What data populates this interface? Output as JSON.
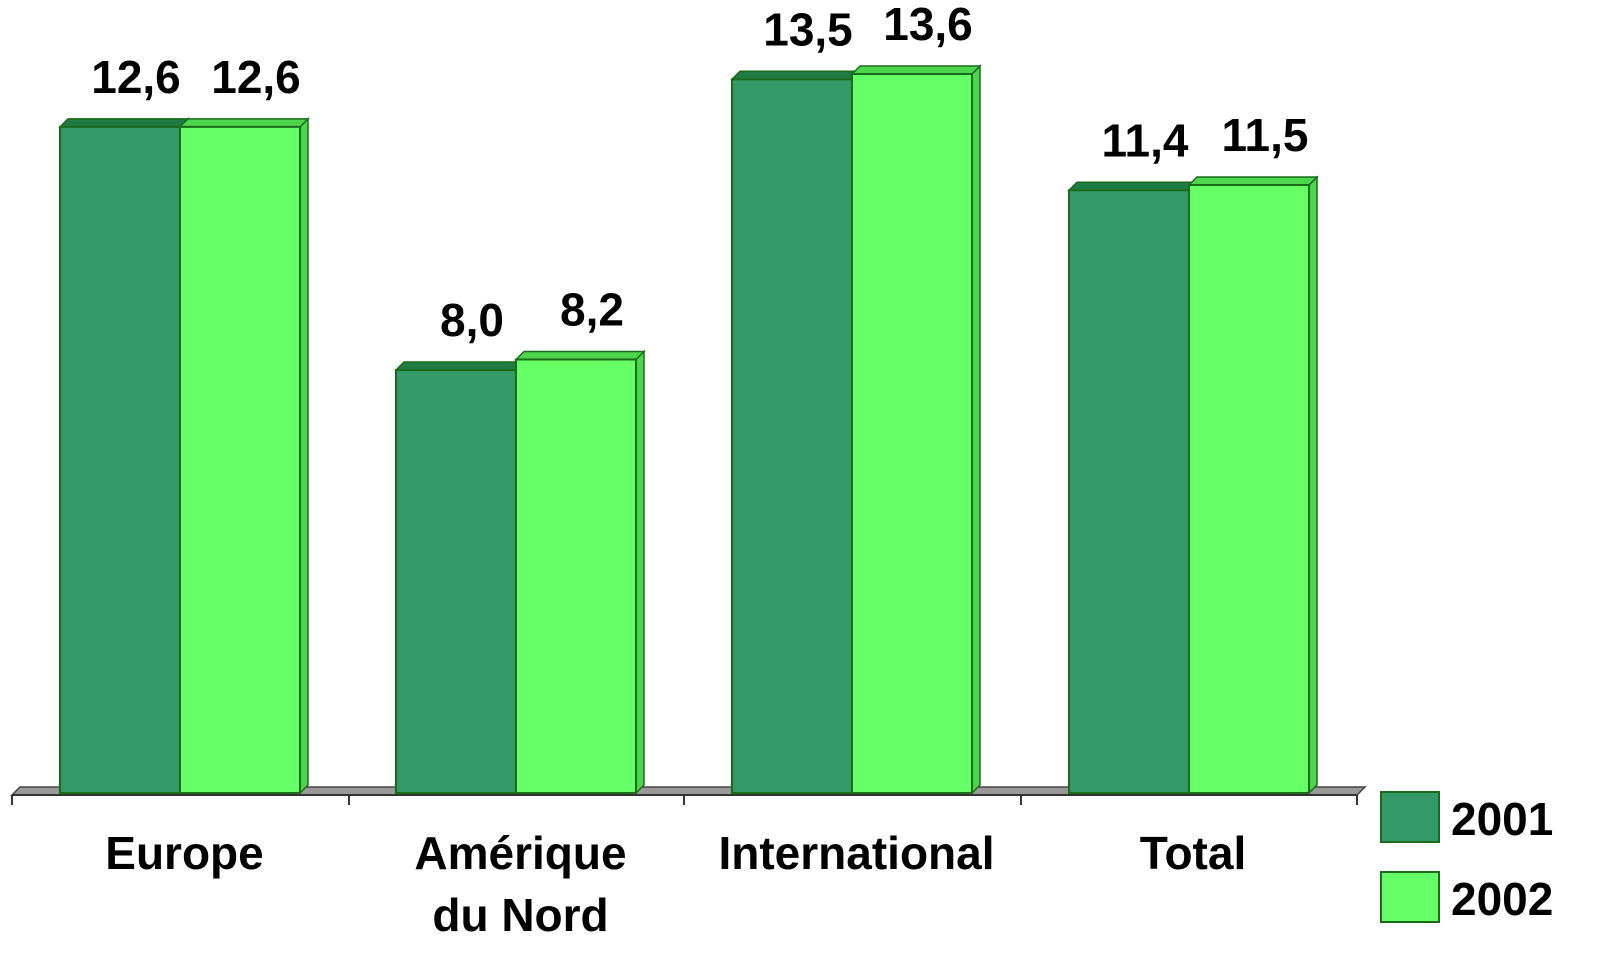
{
  "chart_data": {
    "type": "bar",
    "categories": [
      "Europe",
      "Amérique du Nord",
      "International",
      "Total"
    ],
    "category_lines": [
      [
        "Europe"
      ],
      [
        "Amérique",
        "du Nord"
      ],
      [
        "International"
      ],
      [
        "Total"
      ]
    ],
    "series": [
      {
        "name": "2001",
        "values": [
          12.6,
          8.0,
          13.5,
          11.4
        ],
        "labels": [
          "12,6",
          "8,0",
          "13,5",
          "11,4"
        ],
        "color": "#339966",
        "top_color": "#1f7a44"
      },
      {
        "name": "2002",
        "values": [
          12.6,
          8.2,
          13.6,
          11.5
        ],
        "labels": [
          "12,6",
          "8,2",
          "13,6",
          "11,5"
        ],
        "color": "#66ff66",
        "top_color": "#4dd64d"
      }
    ],
    "ylim": [
      0,
      13.6
    ],
    "grid": false,
    "legend_position": "bottom-right",
    "style_3d": true,
    "floor_color": "#999999",
    "outline_color": "#1a6b1a"
  }
}
